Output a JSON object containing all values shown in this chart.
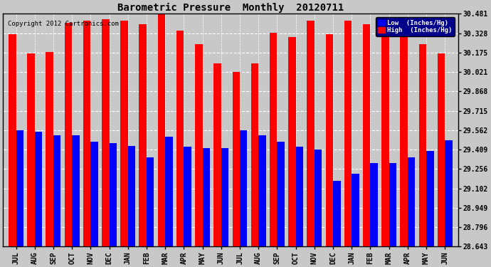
{
  "title": "Barometric Pressure  Monthly  20120711",
  "copyright": "Copyright 2012 Cartronics.com",
  "legend_low": "Low  (Inches/Hg)",
  "legend_high": "High  (Inches/Hg)",
  "months": [
    "JUL",
    "AUG",
    "SEP",
    "OCT",
    "NOV",
    "DEC",
    "JAN",
    "FEB",
    "MAR",
    "APR",
    "MAY",
    "JUN",
    "JUL",
    "AUG",
    "SEP",
    "OCT",
    "NOV",
    "DEC",
    "JAN",
    "FEB",
    "MAR",
    "APR",
    "MAY",
    "JUN"
  ],
  "high_values": [
    30.32,
    30.17,
    30.18,
    30.41,
    30.43,
    30.44,
    30.43,
    30.4,
    30.48,
    30.35,
    30.24,
    30.09,
    30.02,
    30.09,
    30.33,
    30.3,
    30.43,
    30.32,
    30.43,
    30.4,
    30.44,
    30.35,
    30.24,
    30.17
  ],
  "low_values": [
    29.56,
    29.55,
    29.52,
    29.52,
    29.47,
    29.46,
    29.44,
    29.35,
    29.51,
    29.43,
    29.42,
    29.42,
    29.56,
    29.52,
    29.47,
    29.43,
    29.41,
    29.16,
    29.22,
    29.3,
    29.3,
    29.35,
    29.4,
    29.48
  ],
  "ylim_min": 28.643,
  "ylim_max": 30.481,
  "yticks": [
    28.643,
    28.796,
    28.949,
    29.102,
    29.256,
    29.409,
    29.562,
    29.715,
    29.868,
    30.021,
    30.175,
    30.328,
    30.481
  ],
  "bg_color": "#c8c8c8",
  "plot_bg": "#c8c8c8",
  "high_color": "#ff0000",
  "low_color": "#0000ff",
  "title_color": "#000000",
  "grid_color": "#ffffff",
  "bar_width": 0.4
}
